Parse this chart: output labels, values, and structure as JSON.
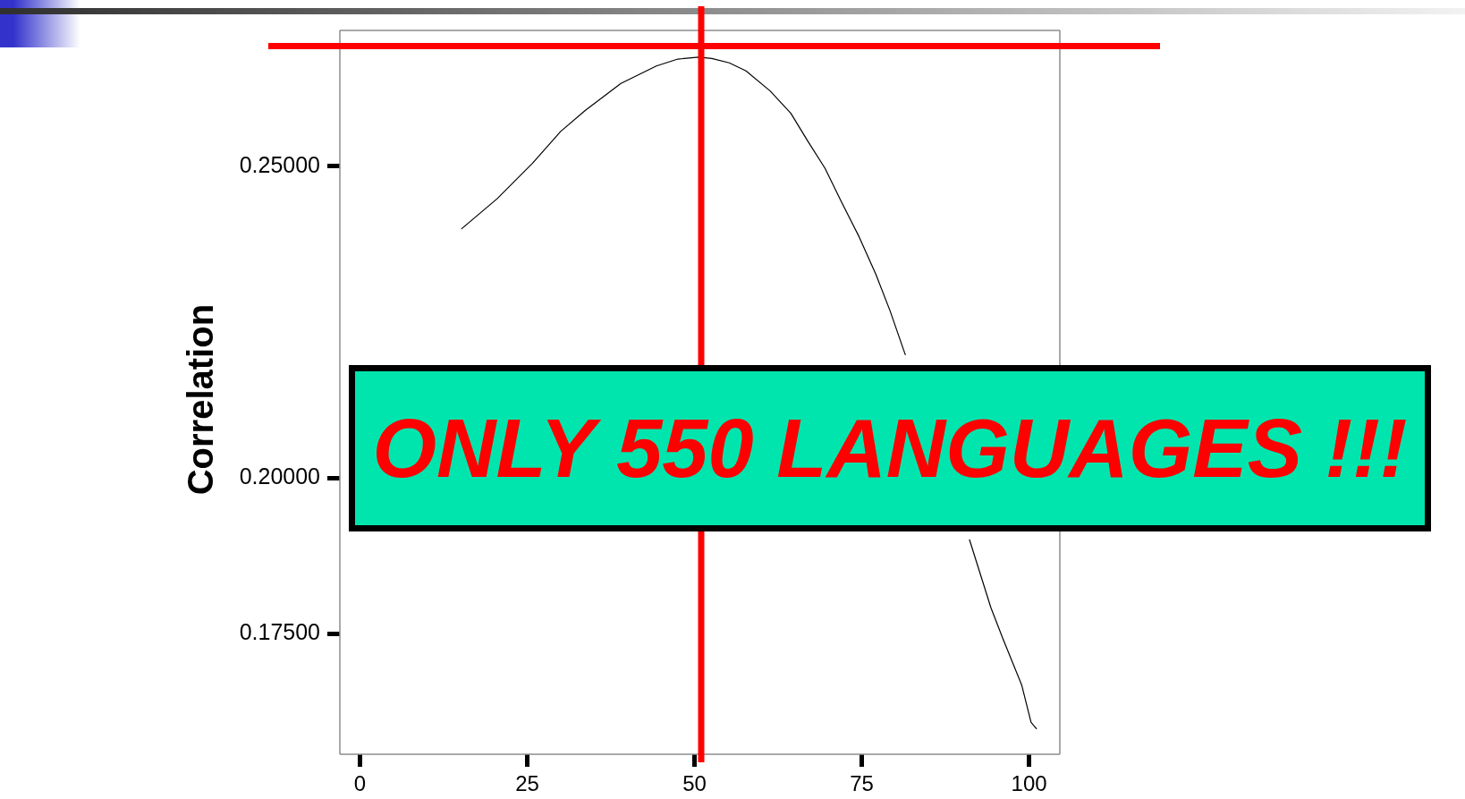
{
  "chart_data": {
    "type": "line",
    "ylabel": "Correlation",
    "x": [
      15.2,
      20.5,
      25.8,
      30.0,
      33.7,
      39.0,
      44.3,
      47.5,
      50.6,
      52.6,
      55.2,
      57.7,
      61.3,
      64.4,
      66.9,
      69.5,
      72.0,
      74.6,
      77.1,
      79.2,
      81.5,
      86,
      91.1,
      94.3,
      96.1,
      98.9,
      100.3,
      101.1
    ],
    "series": [
      {
        "color": "#000000",
        "values": [
          0.24,
          0.2448,
          0.2505,
          0.2556,
          0.259,
          0.2633,
          0.2661,
          0.2672,
          0.2675,
          0.2673,
          0.2666,
          0.2653,
          0.2621,
          0.2585,
          0.2541,
          0.2497,
          0.2442,
          0.2387,
          0.2327,
          0.2269,
          0.2198,
          null,
          0.1901,
          0.1792,
          0.1742,
          0.1668,
          0.1608,
          0.1598
        ]
      }
    ],
    "xlim": [
      -3,
      104.6
    ],
    "ylim": [
      0.1557,
      0.2718
    ],
    "xticks": [
      0,
      25,
      50,
      75,
      100
    ],
    "yticks": [
      {
        "value": 0.175,
        "label": "0.17500"
      },
      {
        "value": 0.2,
        "label": "0.20000"
      },
      {
        "value": 0.25,
        "label": "0.25000"
      }
    ],
    "ref_lines": [
      {
        "axis": "x",
        "value": 51,
        "color": "#ff0000"
      },
      {
        "axis": "y",
        "value": 0.2693,
        "color": "#ff0000"
      }
    ],
    "annotations": [
      "ONLY 550 LANGUAGES !!!"
    ],
    "legend": false,
    "grid": false,
    "marker": "none",
    "line_style": "solid"
  }
}
